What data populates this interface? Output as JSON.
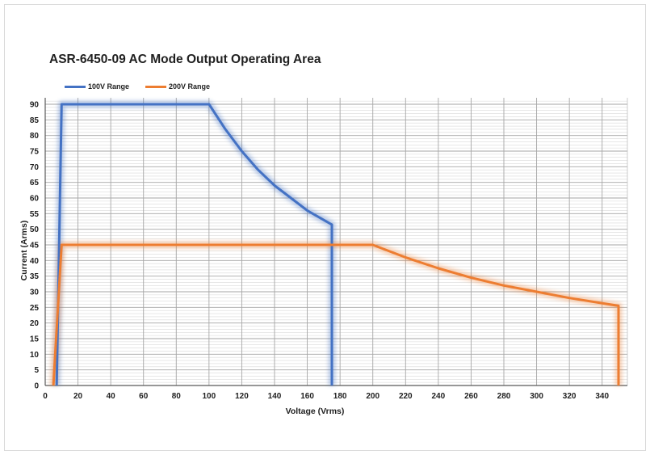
{
  "chart_data": {
    "type": "line",
    "title": "ASR-6450-09 AC Mode Output Operating Area",
    "xlabel": "Voltage (Vrms)",
    "ylabel": "Current (Arms)",
    "xlim": [
      0,
      350
    ],
    "ylim": [
      0,
      90
    ],
    "x_ticks": [
      0,
      20,
      40,
      60,
      80,
      100,
      120,
      140,
      160,
      180,
      200,
      220,
      240,
      260,
      280,
      300,
      320,
      340
    ],
    "y_ticks": [
      0,
      5,
      10,
      15,
      20,
      25,
      30,
      35,
      40,
      45,
      50,
      55,
      60,
      65,
      70,
      75,
      80,
      85,
      90
    ],
    "grid": true,
    "legend_position": "top-left",
    "series": [
      {
        "name": "100V Range",
        "color": "#4472c4",
        "points": [
          [
            7,
            0
          ],
          [
            10,
            90
          ],
          [
            100,
            90
          ],
          [
            110,
            82
          ],
          [
            120,
            75
          ],
          [
            130,
            69
          ],
          [
            140,
            64
          ],
          [
            150,
            60
          ],
          [
            160,
            56
          ],
          [
            175,
            51.5
          ],
          [
            175,
            0
          ]
        ]
      },
      {
        "name": "200V Range",
        "color": "#ed7d31",
        "points": [
          [
            5,
            0
          ],
          [
            10,
            45
          ],
          [
            200,
            45
          ],
          [
            220,
            41
          ],
          [
            240,
            37.5
          ],
          [
            260,
            34.5
          ],
          [
            280,
            32
          ],
          [
            300,
            30
          ],
          [
            320,
            28
          ],
          [
            350,
            25.5
          ],
          [
            350,
            0
          ]
        ]
      }
    ]
  }
}
